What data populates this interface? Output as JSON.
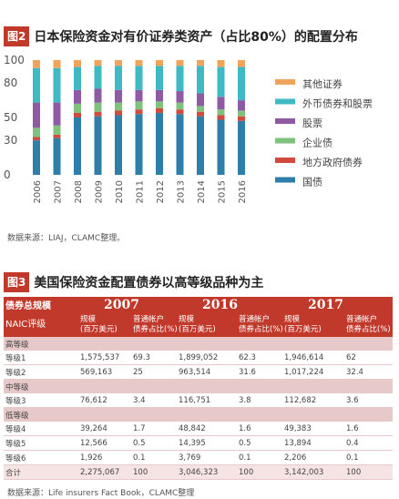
{
  "fig2": {
    "tag": "图2",
    "title": "日本保险资金对有价证券类资产（占比80%）的配置分布",
    "source": "数据来源：LIAJ，CLAMC整理。",
    "colors": {
      "tag_bg": "#c0392b",
      "国债": "#2d7fa9",
      "地方政府债券": "#d04a3d",
      "企业债": "#7fc27d",
      "股票": "#8e5aa3",
      "外币债券和股票": "#3fb9c4",
      "其他证券": "#f0a35b"
    }
  },
  "chart_data": {
    "type": "bar",
    "stacked": true,
    "categories": [
      "2006",
      "2007",
      "2008",
      "2009",
      "2010",
      "2011",
      "2012",
      "2013",
      "2014",
      "2015",
      "2016"
    ],
    "yticks": [
      0,
      30,
      50,
      80,
      100
    ],
    "ylim": [
      0,
      100
    ],
    "legend_position": "right",
    "series": [
      {
        "name": "国债",
        "values": [
          30,
          32,
          50,
          51,
          52,
          53,
          54,
          53,
          51,
          48,
          47
        ]
      },
      {
        "name": "地方政府债券",
        "values": [
          3,
          3,
          4,
          4,
          4,
          4,
          4,
          4,
          4,
          4,
          4
        ]
      },
      {
        "name": "企业债",
        "values": [
          8,
          8,
          8,
          8,
          7,
          7,
          6,
          6,
          5,
          5,
          5
        ]
      },
      {
        "name": "股票",
        "values": [
          22,
          20,
          12,
          12,
          11,
          10,
          10,
          10,
          11,
          11,
          9
        ]
      },
      {
        "name": "外币债券和股票",
        "values": [
          30,
          30,
          20,
          20,
          21,
          21,
          21,
          22,
          24,
          26,
          29
        ]
      },
      {
        "name": "其他证券",
        "values": [
          7,
          7,
          6,
          5,
          5,
          5,
          5,
          5,
          5,
          6,
          6
        ]
      }
    ]
  },
  "fig3": {
    "tag": "图3",
    "title": "美国保险资金配置债券以高等级品种为主",
    "source": "数据来源：Life insurers Fact Book，CLAMC整理",
    "header": {
      "label1": "债券总规模",
      "label2": "NAIC评级",
      "years": [
        "2007",
        "2016",
        "2017"
      ],
      "scale": "规模",
      "scale_unit": "(百万美元)",
      "share": "普通帐户",
      "share_unit": "债券占比(%)"
    },
    "sections": [
      {
        "category": "高等级",
        "rows": [
          {
            "name": "等级1",
            "values": [
              "1,575,537",
              "69.3",
              "1,899,052",
              "62.3",
              "1,946,614",
              "62"
            ]
          },
          {
            "name": "等级2",
            "values": [
              "569,163",
              "25",
              "963,514",
              "31.6",
              "1,017,224",
              "32.4"
            ]
          }
        ]
      },
      {
        "category": "中等级",
        "rows": [
          {
            "name": "等级3",
            "values": [
              "76,612",
              "3.4",
              "116,751",
              "3.8",
              "112,682",
              "3.6"
            ]
          }
        ]
      },
      {
        "category": "低等级",
        "rows": [
          {
            "name": "等级4",
            "values": [
              "39,264",
              "1.7",
              "48,842",
              "1.6",
              "49,383",
              "1.6"
            ]
          },
          {
            "name": "等级5",
            "values": [
              "12,566",
              "0.5",
              "14,395",
              "0.5",
              "13,894",
              "0.4"
            ]
          },
          {
            "name": "等级6",
            "values": [
              "1,926",
              "0.1",
              "3,769",
              "0.1",
              "2,206",
              "0.1"
            ]
          }
        ]
      }
    ],
    "total": {
      "name": "合计",
      "values": [
        "2,275,067",
        "100",
        "3,046,323",
        "100",
        "3,142,003",
        "100"
      ]
    }
  }
}
